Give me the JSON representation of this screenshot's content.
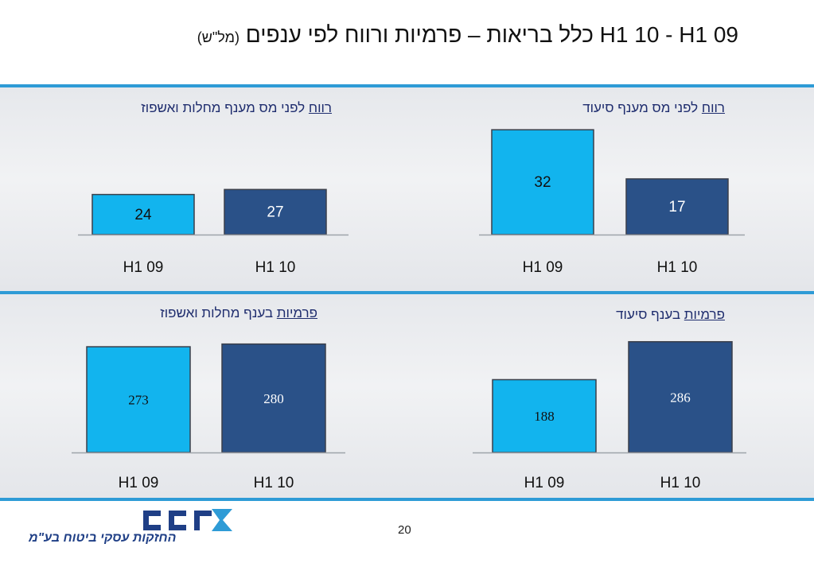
{
  "title": {
    "main": "כלל בריאות – פרמיות ורווח לפי ענפים H1 10 - H1 09",
    "unit": "(מל\"ש)"
  },
  "page_number": "20",
  "logo": {
    "brand": "כלל",
    "subtitle": "החזקות עסקי ביטוח בע\"מ"
  },
  "colors": {
    "light_bar": "#12b4ee",
    "dark_bar": "#2a5188",
    "title_text": "#1f2d6e",
    "band": "#2e9bd6"
  },
  "charts": [
    {
      "id": "profit-health",
      "title_ul": "רווח",
      "title_rest": " לפני מס מענף מחלות ואשפוז"
    },
    {
      "id": "profit-nursing",
      "title_ul": "רווח",
      "title_rest": " לפני מס מענף סיעוד"
    },
    {
      "id": "premium-health",
      "title_ul": "פרמיות",
      "title_rest": " בענף מחלות ואשפוז"
    },
    {
      "id": "premium-nursing",
      "title_ul": "פרמיות",
      "title_rest": " בענף סיעוד"
    }
  ],
  "chart_data": [
    {
      "type": "bar",
      "title": "רווח לפני מס מענף מחלות ואשפוז",
      "categories": [
        "H1 09",
        "H1 10"
      ],
      "values": [
        24,
        27
      ]
    },
    {
      "type": "bar",
      "title": "רווח לפני מס מענף סיעוד",
      "categories": [
        "H1 09",
        "H1 10"
      ],
      "values": [
        32,
        17
      ]
    },
    {
      "type": "bar",
      "title": "פרמיות בענף מחלות ואשפוז",
      "categories": [
        "H1 09",
        "H1 10"
      ],
      "values": [
        273,
        280
      ]
    },
    {
      "type": "bar",
      "title": "פרמיות בענף סיעוד",
      "categories": [
        "H1 09",
        "H1 10"
      ],
      "values": [
        188,
        286
      ]
    }
  ]
}
